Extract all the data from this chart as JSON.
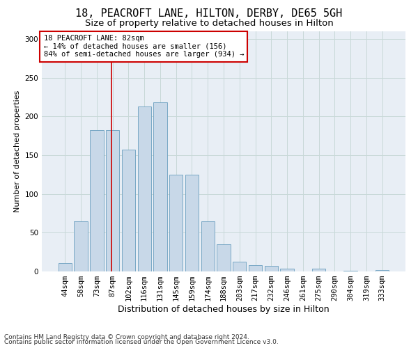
{
  "title1": "18, PEACROFT LANE, HILTON, DERBY, DE65 5GH",
  "title2": "Size of property relative to detached houses in Hilton",
  "xlabel": "Distribution of detached houses by size in Hilton",
  "ylabel": "Number of detached properties",
  "footnote1": "Contains HM Land Registry data © Crown copyright and database right 2024.",
  "footnote2": "Contains public sector information licensed under the Open Government Licence v3.0.",
  "bar_labels": [
    "44sqm",
    "58sqm",
    "73sqm",
    "87sqm",
    "102sqm",
    "116sqm",
    "131sqm",
    "145sqm",
    "159sqm",
    "174sqm",
    "188sqm",
    "203sqm",
    "217sqm",
    "232sqm",
    "246sqm",
    "261sqm",
    "275sqm",
    "290sqm",
    "304sqm",
    "319sqm",
    "333sqm"
  ],
  "bar_values": [
    11,
    65,
    182,
    182,
    157,
    213,
    218,
    125,
    125,
    65,
    35,
    13,
    8,
    7,
    4,
    0,
    4,
    0,
    1,
    0,
    2
  ],
  "bar_color": "#c8d8e8",
  "bar_edge_color": "#6a9fbf",
  "grid_color": "#c8d8d8",
  "background_color": "#e8eef5",
  "red_line_color": "#cc0000",
  "annotation_box_color": "#ffffff",
  "annotation_box_edge_color": "#cc0000",
  "property_label": "18 PEACROFT LANE: 82sqm",
  "annotation_line1": "← 14% of detached houses are smaller (156)",
  "annotation_line2": "84% of semi-detached houses are larger (934) →",
  "ylim": [
    0,
    310
  ],
  "yticks": [
    0,
    50,
    100,
    150,
    200,
    250,
    300
  ],
  "title1_fontsize": 11,
  "title2_fontsize": 9.5,
  "xlabel_fontsize": 9,
  "ylabel_fontsize": 8,
  "tick_fontsize": 7.5,
  "annotation_fontsize": 7.5,
  "footnote_fontsize": 6.5
}
